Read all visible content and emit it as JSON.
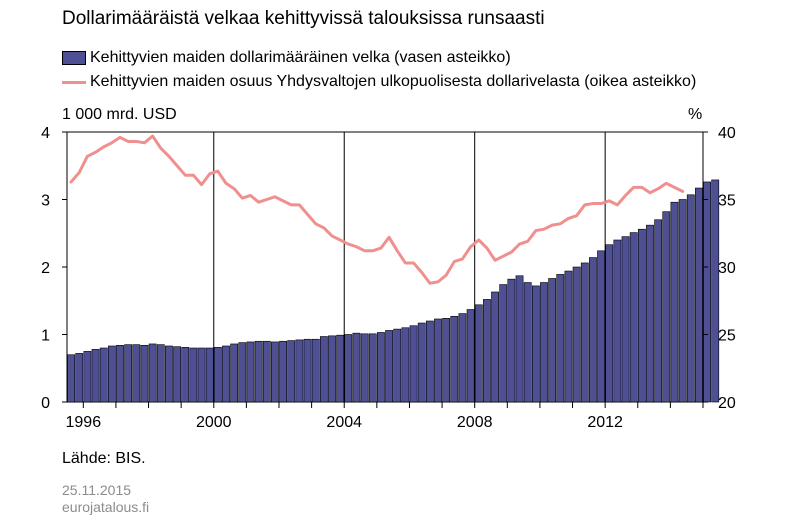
{
  "chart_data": {
    "type": "bar+line",
    "title": "Dollarimääräistä velkaa kehittyvissä talouksissa runsaasti",
    "left_unit": "1 000 mrd. USD",
    "right_unit": "%",
    "left_ylim": [
      0,
      4
    ],
    "right_ylim": [
      20,
      40
    ],
    "left_ticks": [
      "0",
      "1",
      "2",
      "3",
      "4"
    ],
    "right_ticks": [
      "20",
      "25",
      "30",
      "35",
      "40"
    ],
    "x_tick_labels": [
      "1996",
      "2000",
      "2004",
      "2008",
      "2012"
    ],
    "x_range": [
      "1995Q3",
      "2014Q4"
    ],
    "legend_placement": "top-left",
    "gridlines": "vertical at 2000, 2004, 2008, 2012",
    "series": [
      {
        "name": "Kehittyvien maiden dollarimääräinen velka (vasen asteikko)",
        "axis": "left",
        "kind": "bar",
        "color": "#4f4f94",
        "start_quarter": "1995Q3",
        "values": [
          0.7,
          0.72,
          0.75,
          0.78,
          0.8,
          0.83,
          0.84,
          0.85,
          0.85,
          0.84,
          0.86,
          0.85,
          0.83,
          0.82,
          0.81,
          0.8,
          0.8,
          0.8,
          0.81,
          0.83,
          0.86,
          0.88,
          0.89,
          0.9,
          0.9,
          0.89,
          0.9,
          0.91,
          0.92,
          0.93,
          0.93,
          0.97,
          0.98,
          0.99,
          1.0,
          1.02,
          1.01,
          1.01,
          1.03,
          1.06,
          1.08,
          1.1,
          1.13,
          1.17,
          1.2,
          1.23,
          1.24,
          1.27,
          1.31,
          1.37,
          1.44,
          1.52,
          1.63,
          1.74,
          1.82,
          1.87,
          1.77,
          1.72,
          1.77,
          1.83,
          1.89,
          1.94,
          2.0,
          2.06,
          2.14,
          2.24,
          2.33,
          2.4,
          2.45,
          2.51,
          2.56,
          2.62,
          2.7,
          2.82,
          2.96,
          3.0,
          3.07,
          3.17,
          3.26,
          3.29
        ]
      },
      {
        "name": "Kehittyvien maiden osuus Yhdysvaltojen ulkopuolisesta dollarivelasta (oikea asteikko)",
        "axis": "right",
        "kind": "line",
        "color": "#f0908e",
        "points": [
          [
            "1995Q3",
            36.3
          ],
          [
            "1995Q4",
            37.0
          ],
          [
            "1996Q1",
            38.2
          ],
          [
            "1996Q2",
            38.5
          ],
          [
            "1996Q3",
            38.9
          ],
          [
            "1996Q4",
            39.2
          ],
          [
            "1997Q1",
            39.6
          ],
          [
            "1997Q2",
            39.3
          ],
          [
            "1997Q3",
            39.3
          ],
          [
            "1997Q4",
            39.2
          ],
          [
            "1998Q1",
            39.7
          ],
          [
            "1998Q2",
            38.8
          ],
          [
            "1998Q3",
            38.2
          ],
          [
            "1998Q4",
            37.5
          ],
          [
            "1999Q1",
            36.8
          ],
          [
            "1999Q2",
            36.8
          ],
          [
            "1999Q3",
            36.1
          ],
          [
            "1999Q4",
            36.9
          ],
          [
            "2000Q1",
            37.1
          ],
          [
            "2000Q2",
            36.2
          ],
          [
            "2000Q3",
            35.8
          ],
          [
            "2000Q4",
            35.1
          ],
          [
            "2001Q1",
            35.3
          ],
          [
            "2001Q2",
            34.8
          ],
          [
            "2001Q3",
            35.0
          ],
          [
            "2001Q4",
            35.2
          ],
          [
            "2002Q1",
            34.9
          ],
          [
            "2002Q2",
            34.6
          ],
          [
            "2002Q3",
            34.6
          ],
          [
            "2002Q4",
            33.9
          ],
          [
            "2003Q1",
            33.2
          ],
          [
            "2003Q2",
            32.9
          ],
          [
            "2003Q3",
            32.3
          ],
          [
            "2003Q4",
            32.0
          ],
          [
            "2004Q1",
            31.7
          ],
          [
            "2004Q2",
            31.5
          ],
          [
            "2004Q3",
            31.2
          ],
          [
            "2004Q4",
            31.2
          ],
          [
            "2005Q1",
            31.4
          ],
          [
            "2005Q2",
            32.2
          ],
          [
            "2005Q3",
            31.2
          ],
          [
            "2005Q4",
            30.3
          ],
          [
            "2006Q1",
            30.3
          ],
          [
            "2006Q2",
            29.6
          ],
          [
            "2006Q3",
            28.8
          ],
          [
            "2006Q4",
            28.9
          ],
          [
            "2007Q1",
            29.4
          ],
          [
            "2007Q2",
            30.4
          ],
          [
            "2007Q3",
            30.6
          ],
          [
            "2007Q4",
            31.5
          ],
          [
            "2008Q1",
            32.0
          ],
          [
            "2008Q2",
            31.4
          ],
          [
            "2008Q3",
            30.5
          ],
          [
            "2008Q4",
            30.8
          ],
          [
            "2009Q1",
            31.1
          ],
          [
            "2009Q2",
            31.7
          ],
          [
            "2009Q3",
            31.9
          ],
          [
            "2009Q4",
            32.7
          ],
          [
            "2010Q1",
            32.8
          ],
          [
            "2010Q2",
            33.1
          ],
          [
            "2010Q3",
            33.2
          ],
          [
            "2010Q4",
            33.6
          ],
          [
            "2011Q1",
            33.8
          ],
          [
            "2011Q2",
            34.6
          ],
          [
            "2011Q3",
            34.7
          ],
          [
            "2011Q4",
            34.7
          ],
          [
            "2012Q1",
            34.9
          ],
          [
            "2012Q2",
            34.6
          ],
          [
            "2012Q3",
            35.3
          ],
          [
            "2012Q4",
            35.9
          ],
          [
            "2013Q1",
            35.9
          ],
          [
            "2013Q2",
            35.5
          ],
          [
            "2013Q3",
            35.8
          ],
          [
            "2013Q4",
            36.2
          ],
          [
            "2014Q1",
            35.9
          ],
          [
            "2014Q2",
            35.6
          ]
        ]
      }
    ]
  },
  "source": "Lähde: BIS.",
  "date": "25.11.2015",
  "site": "eurojatalous.fi"
}
